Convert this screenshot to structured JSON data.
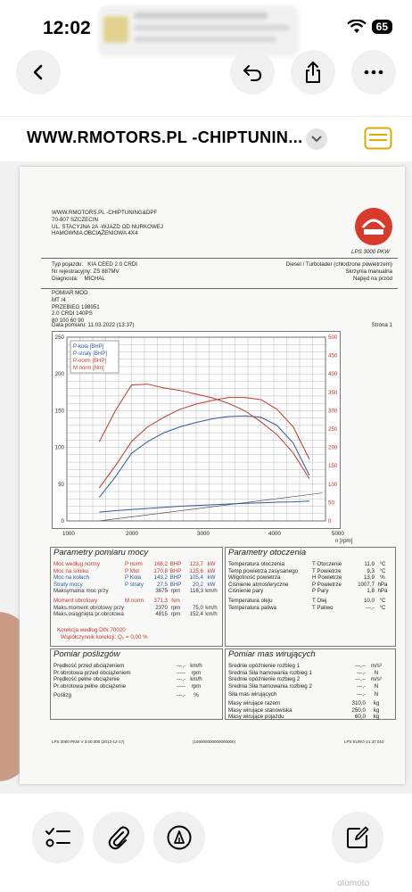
{
  "status": {
    "time": "12:02",
    "battery": "65"
  },
  "toolbar": {
    "url": "WWW.RMOTORS.PL -CHIPTUNIN..."
  },
  "doc": {
    "header_lines": [
      "WWW.RMOTORS.PL -CHIPTUNING&DPF",
      "70-807 SZCZECIN",
      "UL. STACYJNA 2A -WJAZD OD NURKOWEJ",
      "HAMOWNIA OBCIĄŻENIOWA 4X4"
    ],
    "logo_label": "LPS 3000 PKW",
    "vehicle": [
      {
        "k": "Typ pojazdu:",
        "v": "KIA CEED 2.0 CRDI"
      },
      {
        "k": "Nr rejestracyjny:",
        "v": "ZS 887MV"
      },
      {
        "k": "Diagnosta:",
        "v": "MICHAL"
      }
    ],
    "engine_info": [
      "Diesel / Turbolader (chłodzone powietrzem)",
      "Skrzynia manualna",
      "Napęd na przód"
    ],
    "notes": [
      "POMIAR  MOD",
      "MT /4",
      "PRZEBIEG 198951",
      "2.0 CRDI 140PS",
      "80 100 60 90"
    ],
    "date": "Data pomiaru: 11.03.2022 (13:37)",
    "page": "Strona 1",
    "section_power": "Parametry pomiaru mocy",
    "section_env": "Parametry otoczenia",
    "section_loss": "Pomiar poślizgów",
    "section_mass": "Pomiar mas wirujących",
    "footer_left": "LPS 3000 PKW V 3.00.000 (2013-12-17)",
    "footer_mid": "(100000000000000000)",
    "footer_right": "LPS EURO V1.37.010"
  },
  "chart_data": {
    "type": "line",
    "x_label": "n [rpm]",
    "x": [
      1000,
      1250,
      1500,
      1750,
      2000,
      2250,
      2500,
      2750,
      3000,
      3250,
      3500,
      3750,
      4000,
      4250,
      4500,
      4750,
      5000
    ],
    "xlim": [
      1000,
      5000
    ],
    "ylim_left": [
      0,
      250
    ],
    "ylim_right": [
      0,
      500
    ],
    "x_ticks": [
      1000,
      2000,
      3000,
      4000,
      5000
    ],
    "y_ticks_left": [
      0,
      50,
      100,
      150,
      200,
      250
    ],
    "y_ticks_right": [
      0,
      50,
      100,
      150,
      200,
      250,
      300,
      350,
      400,
      450,
      500
    ],
    "legend": [
      "P-koła [BHP]",
      "P-straty [BHP]",
      "P-norm [BHP]",
      "M norm [Nm]"
    ],
    "series": [
      {
        "name": "P-koła [BHP]",
        "color": "#2c5aa0",
        "axis": "left",
        "values": [
          null,
          null,
          32,
          60,
          92,
          108,
          120,
          128,
          134,
          139,
          142,
          143,
          141,
          130,
          106,
          62,
          null
        ]
      },
      {
        "name": "P-straty [BHP]",
        "color": "#2c5aa0",
        "axis": "left",
        "values": [
          null,
          null,
          12,
          14,
          15.5,
          17,
          18.5,
          20,
          21,
          22,
          23,
          24,
          24.5,
          25.5,
          26,
          27,
          null
        ]
      },
      {
        "name": "P-norm [BHP]",
        "color": "#c0392b",
        "axis": "left",
        "values": [
          null,
          null,
          45,
          75,
          108,
          128,
          141,
          152,
          159,
          164,
          168,
          168,
          165,
          152,
          128,
          84,
          null
        ]
      },
      {
        "name": "M norm [Nm]",
        "color": "#c0392b",
        "axis": "right",
        "values": [
          null,
          null,
          215,
          300,
          370,
          372,
          362,
          355,
          345,
          335,
          320,
          300,
          270,
          235,
          185,
          115,
          null
        ]
      }
    ]
  },
  "power_rows": [
    {
      "label": "Moc według normy",
      "sym": "P norm",
      "v1": "168,2",
      "u1": "BHP",
      "v2": "123,7",
      "u2": "kW",
      "color": "#c0392b"
    },
    {
      "label": "Moc na silniku",
      "sym": "P Mot",
      "v1": "170,8",
      "u1": "BHP",
      "v2": "125,6",
      "u2": "kW",
      "color": "#c0392b"
    },
    {
      "label": "Moc na kołach",
      "sym": "P Koła",
      "v1": "143,2",
      "u1": "BHP",
      "v2": "105,4",
      "u2": "kW",
      "color": "#2c5aa0"
    },
    {
      "label": "Straty mocy",
      "sym": "P straty",
      "v1": "27,5",
      "u1": "BHP",
      "v2": "20,2",
      "u2": "kW",
      "color": "#2c5aa0"
    },
    {
      "label": "Maksymalna moc przy",
      "sym": "",
      "v1": "3675",
      "u1": "rpm",
      "v2": "116,3",
      "u2": "km/h",
      "color": "#333"
    },
    {
      "label": "Moment obrotowy",
      "sym": "M norm",
      "v1": "371,3",
      "u1": "Nm",
      "v2": "",
      "u2": "",
      "color": "#c0392b"
    },
    {
      "label": "Maks.moment obrotowy przy",
      "sym": "",
      "v1": "2370",
      "u1": "rpm",
      "v2": "75,0",
      "u2": "km/h",
      "color": "#333"
    },
    {
      "label": "Maks.osiągnięta pr.obrotowa",
      "sym": "",
      "v1": "4815",
      "u1": "rpm",
      "v2": "152,4",
      "u2": "km/h",
      "color": "#333"
    }
  ],
  "correction": [
    "Korekcja według DIN 70020",
    "Współczynnik korekcji: Q₀ = 0,00 %"
  ],
  "env_rows": [
    {
      "label": "Temperatura otoczenia",
      "sym": "T Otoczenie",
      "v": "11,0",
      "u": "°C"
    },
    {
      "label": "Temp.powietrza zasysanego",
      "sym": "T Powietrze",
      "v": "9,3",
      "u": "°C"
    },
    {
      "label": "Wilgotność powietrza",
      "sym": "H Powietrze",
      "v": "13,9",
      "u": "%"
    },
    {
      "label": "Ciśnienie atmosferyczne",
      "sym": "P Powietrze",
      "v": "1007,7",
      "u": "hPa"
    },
    {
      "label": "Ciśnienie pary",
      "sym": "P Pary",
      "v": "1,8",
      "u": "hPa"
    },
    {
      "label": "Temperatura oleju",
      "sym": "T Olej",
      "v": "10,0",
      "u": "°C"
    },
    {
      "label": "Temperatura paliwa",
      "sym": "T Paliwo",
      "v": "---,-",
      "u": "°C"
    }
  ],
  "loss_rows": [
    {
      "label": "Prędkość przed obciążeniem",
      "v": "---,-",
      "u": "km/h"
    },
    {
      "label": "Pr.obrotowa przed obciążeniem",
      "v": "-----",
      "u": "rpm"
    },
    {
      "label": "Prędkość pełne obciążenie",
      "v": "---,-",
      "u": "km/h"
    },
    {
      "label": "Pr.obrotowa pełne obciążenie",
      "v": "-----",
      "u": "rpm"
    },
    {
      "label": "Poślizg",
      "v": "---,-",
      "u": "%"
    }
  ],
  "mass_rows": [
    {
      "label": "Średnie opóźnienie rozbieg 1",
      "v": "---,--",
      "u": "m/s²"
    },
    {
      "label": "Średnia Siła hamowania rozbieg 1",
      "v": "---,-",
      "u": "N"
    },
    {
      "label": "Średnie opóźnienie rozbieg 2",
      "v": "---,--",
      "u": "m/s²"
    },
    {
      "label": "Średnia Siła hamowania rozbieg 2",
      "v": "---,-",
      "u": "N"
    },
    {
      "label": "Siła mas wirujących",
      "v": "---,-",
      "u": "N"
    },
    {
      "label": "Masy wirujące razem",
      "v": "310,0",
      "u": "kg"
    },
    {
      "label": "Masy wirujące stanowiska",
      "v": "250,0",
      "u": "kg"
    },
    {
      "label": "Masy wirujące pojazdu",
      "v": "60,0",
      "u": "kg"
    }
  ],
  "watermark": "otomoto"
}
